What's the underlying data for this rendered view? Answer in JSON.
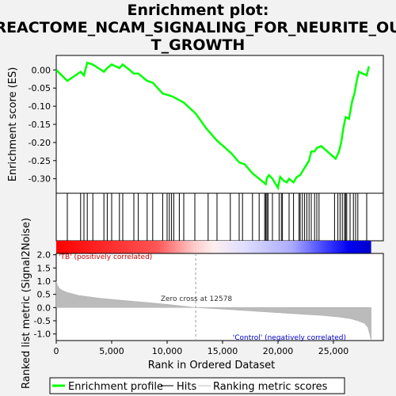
{
  "chart_data": {
    "type": "line",
    "title": "Enrichment plot: REACTOME_NCAM_SIGNALING_FOR_NEURITE_OUT_GROWTH",
    "title_lines": [
      "Enrichment plot:",
      "REACTOME_NCAM_SIGNALING_FOR_NEURITE_OU",
      "T_GROWTH"
    ],
    "x_label": "Rank in Ordered Dataset",
    "es_panel": {
      "ylabel": "Enrichment score (ES)",
      "ylim": [
        -0.34,
        0.04
      ],
      "yticks": [
        0.0,
        -0.05,
        -0.1,
        -0.15,
        -0.2,
        -0.25,
        -0.3
      ],
      "ytick_labels": [
        "0.00",
        "-0.05",
        "-0.10",
        "-0.15",
        "-0.20",
        "-0.25",
        "-0.30"
      ],
      "line_color": "#00ff00",
      "x": [
        0,
        1000,
        2200,
        2500,
        2800,
        3300,
        4300,
        4600,
        5000,
        5700,
        6000,
        7000,
        7400,
        8200,
        8700,
        9600,
        10200,
        10600,
        11500,
        12578,
        13500,
        14500,
        15800,
        16500,
        17000,
        17700,
        18300,
        18900,
        19000,
        19200,
        19500,
        20000,
        20200,
        20500,
        20800,
        21000,
        21400,
        21700,
        22000,
        22200,
        22500,
        22800,
        23000,
        23300,
        23500,
        23900,
        25200,
        25500,
        25700,
        25900,
        26100,
        26400,
        26700,
        26900,
        27100,
        27300,
        28000,
        28200
      ],
      "y": [
        0.0,
        -0.03,
        -0.005,
        -0.015,
        0.02,
        0.015,
        -0.005,
        0.005,
        0.015,
        0.005,
        0.015,
        -0.01,
        -0.01,
        -0.03,
        -0.035,
        -0.065,
        -0.07,
        -0.075,
        -0.09,
        -0.12,
        -0.16,
        -0.195,
        -0.23,
        -0.255,
        -0.26,
        -0.285,
        -0.3,
        -0.315,
        -0.298,
        -0.29,
        -0.3,
        -0.325,
        -0.295,
        -0.305,
        -0.31,
        -0.3,
        -0.31,
        -0.295,
        -0.29,
        -0.28,
        -0.265,
        -0.25,
        -0.225,
        -0.225,
        -0.215,
        -0.21,
        -0.245,
        -0.225,
        -0.2,
        -0.16,
        -0.13,
        -0.135,
        -0.085,
        -0.065,
        -0.03,
        -0.005,
        -0.015,
        0.01
      ]
    },
    "hits_panel": {
      "hits": [
        1000,
        2200,
        2500,
        2800,
        3300,
        4300,
        4600,
        5000,
        5700,
        6000,
        7000,
        7400,
        8200,
        8700,
        9600,
        10000,
        10200,
        10400,
        10600,
        11100,
        11500,
        12500,
        13700,
        14500,
        15700,
        16500,
        16800,
        17700,
        18300,
        18800,
        18900,
        19000,
        19100,
        19500,
        20100,
        20300,
        20400,
        21000,
        21400,
        21900,
        22000,
        22200,
        22400,
        22600,
        22800,
        23000,
        23300,
        23500,
        23700,
        25100,
        25400,
        25600,
        25800,
        26000,
        26100,
        26200,
        26500,
        26800,
        27000,
        27200,
        28000
      ]
    },
    "ranked_panel": {
      "ylabel": "Ranked list metric (Signal2Noise)",
      "ylim": [
        -1.25,
        2.05
      ],
      "yticks": [
        2.0,
        1.5,
        1.0,
        0.5,
        0.0,
        -0.5,
        -1.0
      ],
      "ytick_labels": [
        "2.0",
        "1.5",
        "1.0",
        "0.5",
        "0.0",
        "-0.5",
        "-1.0"
      ],
      "fill_color": "#bbbbbb",
      "x": [
        0,
        100,
        300,
        600,
        1000,
        2000,
        4000,
        6000,
        8000,
        10000,
        12578,
        15000,
        18000,
        21000,
        24000,
        25500,
        26500,
        27200,
        27800,
        28100,
        28300,
        28400
      ],
      "y": [
        1.0,
        0.85,
        0.72,
        0.64,
        0.57,
        0.46,
        0.35,
        0.27,
        0.2,
        0.12,
        0.0,
        -0.06,
        -0.14,
        -0.22,
        -0.3,
        -0.36,
        -0.42,
        -0.5,
        -0.6,
        -0.75,
        -1.05,
        -1.25
      ],
      "zero_cross_label": "Zero cross at 12578",
      "zero_cross_x": 12578,
      "positive_label": "'TB' (positively correlated)",
      "negative_label": "'Control' (negatively correlated)",
      "positive_label_color": "#cc0000",
      "negative_label_color": "#0000cc"
    },
    "xlim": [
      0,
      29500
    ],
    "xticks": [
      0,
      5000,
      10000,
      15000,
      20000,
      25000
    ],
    "xtick_labels": [
      "0",
      "5,000",
      "10,000",
      "15,000",
      "20,000",
      "25,000"
    ],
    "n_genes": 28400,
    "legend": [
      {
        "label": "Enrichment profile",
        "color": "#00ff00",
        "kind": "thick-line"
      },
      {
        "label": "Hits",
        "color": "#000000",
        "kind": "thin-line"
      },
      {
        "label": "Ranking metric scores",
        "color": "#bbbbbb",
        "kind": "thin-line"
      }
    ]
  }
}
